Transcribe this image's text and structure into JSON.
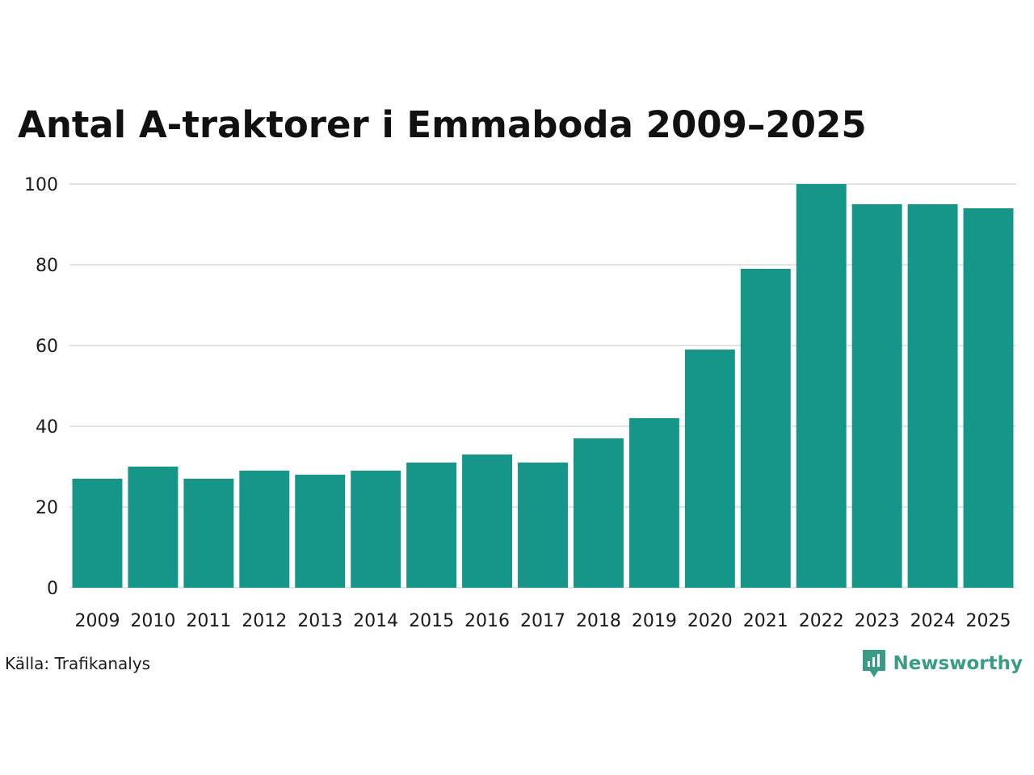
{
  "chart_data": {
    "type": "bar",
    "title": "Antal A-traktorer i Emmaboda 2009–2025",
    "categories": [
      "2009",
      "2010",
      "2011",
      "2012",
      "2013",
      "2014",
      "2015",
      "2016",
      "2017",
      "2018",
      "2019",
      "2020",
      "2021",
      "2022",
      "2023",
      "2024",
      "2025"
    ],
    "values": [
      27,
      30,
      27,
      29,
      28,
      29,
      31,
      33,
      31,
      37,
      42,
      59,
      79,
      100,
      95,
      95,
      94
    ],
    "yticks": [
      0,
      20,
      40,
      60,
      80,
      100
    ],
    "ylim": [
      0,
      100
    ],
    "xlabel": "",
    "ylabel": "",
    "grid": true,
    "legend": "none"
  },
  "source": "Källa: Trafikanalys",
  "brand": {
    "name": "Newsworthy",
    "icon": "newsworthy-logo-icon"
  },
  "colors": {
    "bar": "#159688",
    "grid": "#e3e3e3",
    "brand": "#3a9b86",
    "text": "#111111"
  }
}
